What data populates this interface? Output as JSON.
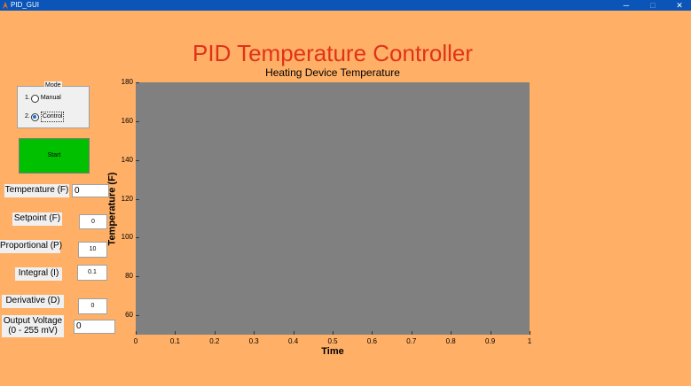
{
  "window": {
    "title": "PID_GUI",
    "minimize_glyph": "─",
    "maximize_glyph": "□",
    "close_glyph": "✕"
  },
  "main_title": "PID Temperature Controller",
  "plot": {
    "title": "Heating Device Temperature",
    "background": "#808080"
  },
  "mode": {
    "legend": "Mode",
    "options": [
      {
        "number": "1.",
        "label": "Manual",
        "selected": false
      },
      {
        "number": "2.",
        "label": "Control",
        "selected": true
      }
    ]
  },
  "start_button": {
    "label": "Start",
    "color": "#00C000"
  },
  "fields": {
    "temperature": {
      "label": "Temperature (F)",
      "value": "0"
    },
    "setpoint": {
      "label": "Setpoint (F)",
      "value": "0"
    },
    "proportional": {
      "label": "Proportional (P)",
      "value": "10"
    },
    "integral": {
      "label": "Integral (I)",
      "value": "0.1"
    },
    "derivative": {
      "label": "Derivative (D)",
      "value": "0"
    },
    "output_voltage": {
      "label_line1": "Output Voltage",
      "label_line2": "(0 - 255 mV)",
      "value": "0"
    }
  },
  "chart_data": {
    "type": "line",
    "title": "Heating Device Temperature",
    "xlabel": "Time",
    "ylabel": "Temperature (F)",
    "xlim": [
      0,
      1
    ],
    "ylim": [
      50,
      180
    ],
    "x_ticks": [
      0,
      0.1,
      0.2,
      0.3,
      0.4,
      0.5,
      0.6,
      0.7,
      0.8,
      0.9,
      1
    ],
    "x_tick_labels": [
      "0",
      "0.1",
      "0.2",
      "0.3",
      "0.4",
      "0.5",
      "0.6",
      "0.7",
      "0.8",
      "0.9",
      "1"
    ],
    "y_ticks": [
      60,
      80,
      100,
      120,
      140,
      160,
      180
    ],
    "y_tick_labels": [
      "60",
      "80",
      "100",
      "120",
      "140",
      "160",
      "180"
    ],
    "series": [],
    "grid": false
  }
}
